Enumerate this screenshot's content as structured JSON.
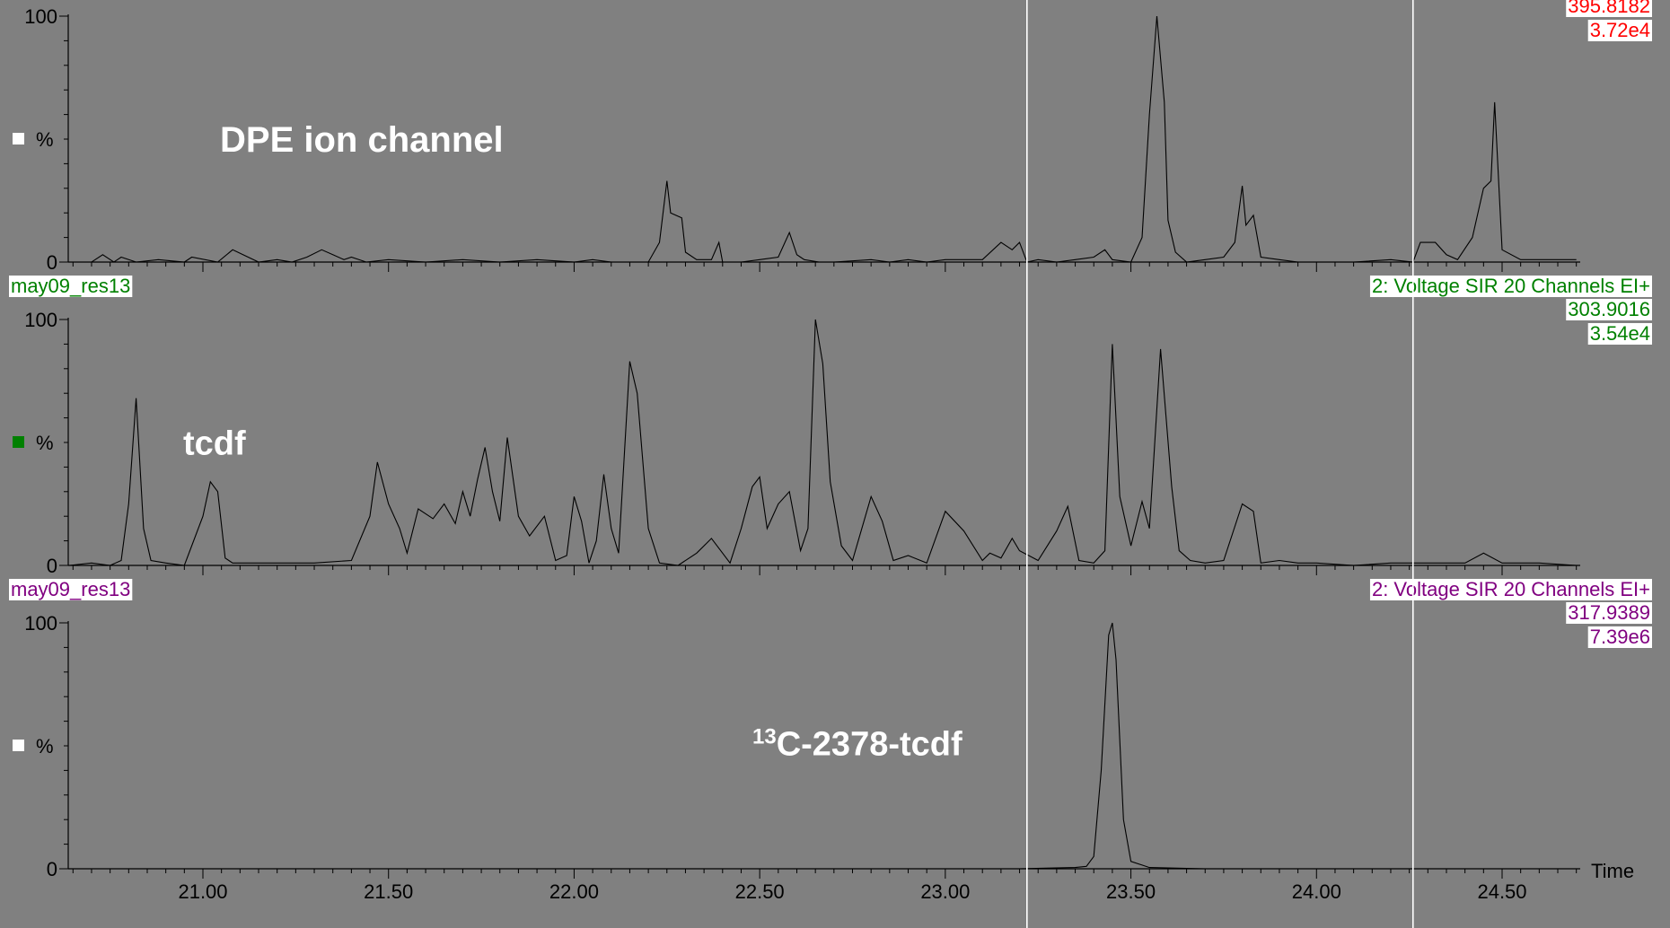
{
  "chart_data": {
    "type": "line",
    "x_label": "Time",
    "x_ticks": [
      "21.00",
      "21.50",
      "22.00",
      "22.50",
      "23.00",
      "23.50",
      "24.00",
      "24.50"
    ],
    "x_tick_values": [
      21.0,
      21.5,
      22.0,
      22.5,
      23.0,
      23.5,
      24.0,
      24.5
    ],
    "xlim": [
      20.64,
      24.71
    ],
    "ylim": [
      0,
      100
    ],
    "y_ticks": [
      "0",
      "100"
    ],
    "y_unit": "%",
    "grid": false,
    "reference_lines_x": [
      23.22,
      24.26
    ],
    "background": "#808080",
    "panels": [
      {
        "legend_marker_color": "#ffffff",
        "header_left": "",
        "header_right": "",
        "mass": "395.8182",
        "intensity": "3.72e4",
        "text_color": "#ff0000",
        "annotation": "DPE ion channel",
        "annotation_sup": "",
        "series": {
          "x": [
            20.64,
            20.7,
            20.73,
            20.76,
            20.78,
            20.82,
            20.88,
            20.95,
            20.97,
            21.04,
            21.08,
            21.15,
            21.2,
            21.24,
            21.28,
            21.32,
            21.35,
            21.38,
            21.4,
            21.44,
            21.5,
            21.6,
            21.7,
            21.8,
            21.9,
            22.0,
            22.05,
            22.1,
            22.15,
            22.2,
            22.23,
            22.25,
            22.26,
            22.29,
            22.3,
            22.33,
            22.37,
            22.39,
            22.4,
            22.45,
            22.5,
            22.55,
            22.58,
            22.6,
            22.62,
            22.66,
            22.7,
            22.8,
            22.85,
            22.9,
            22.95,
            23.0,
            23.1,
            23.15,
            23.18,
            23.2,
            23.22,
            23.25,
            23.3,
            23.35,
            23.4,
            23.43,
            23.45,
            23.5,
            23.53,
            23.55,
            23.57,
            23.59,
            23.6,
            23.62,
            23.65,
            23.7,
            23.75,
            23.78,
            23.8,
            23.81,
            23.83,
            23.85,
            23.9,
            23.95,
            24.0,
            24.1,
            24.2,
            24.26,
            24.28,
            24.3,
            24.32,
            24.35,
            24.38,
            24.42,
            24.45,
            24.47,
            24.48,
            24.5,
            24.55,
            24.6,
            24.7
          ],
          "y": [
            0,
            0,
            3,
            0,
            2,
            0,
            1,
            0,
            2,
            0,
            5,
            0,
            1,
            0,
            2,
            5,
            3,
            1,
            2,
            0,
            1,
            0,
            1,
            0,
            1,
            0,
            1,
            0,
            0,
            0,
            8,
            33,
            20,
            18,
            4,
            1,
            1,
            8,
            0,
            0,
            1,
            2,
            12,
            3,
            1,
            0,
            0,
            1,
            0,
            1,
            0,
            1,
            1,
            8,
            5,
            8,
            0,
            1,
            0,
            1,
            2,
            5,
            1,
            0,
            10,
            60,
            100,
            65,
            17,
            4,
            0,
            1,
            2,
            8,
            31,
            15,
            19,
            2,
            1,
            0,
            0,
            0,
            1,
            0,
            8,
            8,
            8,
            3,
            1,
            10,
            30,
            33,
            65,
            5,
            1,
            1,
            1
          ]
        }
      },
      {
        "legend_marker_color": "#008000",
        "header_left": "may09_res13",
        "header_right": "2: Voltage SIR 20 Channels EI+",
        "mass": "303.9016",
        "intensity": "3.54e4",
        "text_color": "#008000",
        "annotation": "tcdf",
        "annotation_sup": "",
        "series": {
          "x": [
            20.64,
            20.7,
            20.75,
            20.78,
            20.8,
            20.82,
            20.84,
            20.86,
            20.9,
            20.95,
            21.0,
            21.02,
            21.04,
            21.06,
            21.08,
            21.12,
            21.2,
            21.3,
            21.4,
            21.45,
            21.47,
            21.5,
            21.53,
            21.55,
            21.58,
            21.62,
            21.65,
            21.68,
            21.7,
            21.72,
            21.74,
            21.76,
            21.78,
            21.8,
            21.82,
            21.85,
            21.88,
            21.92,
            21.95,
            21.98,
            22.0,
            22.02,
            22.04,
            22.06,
            22.08,
            22.1,
            22.12,
            22.15,
            22.17,
            22.2,
            22.23,
            22.28,
            22.33,
            22.37,
            22.4,
            22.42,
            22.45,
            22.48,
            22.5,
            22.52,
            22.55,
            22.58,
            22.61,
            22.63,
            22.65,
            22.67,
            22.69,
            22.72,
            22.75,
            22.8,
            22.83,
            22.86,
            22.9,
            22.95,
            23.0,
            23.05,
            23.1,
            23.12,
            23.15,
            23.18,
            23.2,
            23.25,
            23.3,
            23.33,
            23.36,
            23.4,
            23.43,
            23.45,
            23.47,
            23.5,
            23.53,
            23.55,
            23.58,
            23.61,
            23.63,
            23.66,
            23.7,
            23.75,
            23.8,
            23.83,
            23.85,
            23.9,
            23.95,
            24.0,
            24.1,
            24.2,
            24.3,
            24.4,
            24.45,
            24.5,
            24.6,
            24.7
          ],
          "y": [
            0,
            1,
            0,
            2,
            25,
            68,
            15,
            2,
            1,
            0,
            20,
            34,
            30,
            3,
            1,
            1,
            1,
            1,
            2,
            20,
            42,
            25,
            15,
            5,
            23,
            19,
            25,
            17,
            30,
            20,
            35,
            48,
            30,
            18,
            52,
            20,
            12,
            20,
            2,
            4,
            28,
            18,
            1,
            10,
            37,
            15,
            5,
            83,
            70,
            15,
            1,
            0,
            5,
            11,
            5,
            1,
            15,
            32,
            36,
            15,
            25,
            30,
            6,
            15,
            100,
            82,
            34,
            8,
            2,
            28,
            18,
            2,
            4,
            1,
            22,
            14,
            2,
            5,
            3,
            11,
            6,
            2,
            14,
            24,
            2,
            1,
            6,
            90,
            28,
            8,
            26,
            15,
            88,
            32,
            6,
            2,
            1,
            2,
            25,
            22,
            1,
            2,
            1,
            1,
            0,
            1,
            1,
            1,
            5,
            1,
            1,
            0
          ]
        }
      },
      {
        "legend_marker_color": "#ffffff",
        "header_left": "may09_res13",
        "header_right": "2: Voltage SIR 20 Channels EI+",
        "mass": "317.9389",
        "intensity": "7.39e6",
        "text_color": "#800080",
        "annotation": "C-2378-tcdf",
        "annotation_sup": "13",
        "series": {
          "x": [
            20.64,
            23.2,
            23.35,
            23.38,
            23.4,
            23.42,
            23.44,
            23.45,
            23.46,
            23.48,
            23.5,
            23.55,
            23.7,
            24.7
          ],
          "y": [
            0,
            0,
            0.5,
            1,
            5,
            40,
            95,
            100,
            85,
            20,
            3,
            0.5,
            0,
            0
          ]
        }
      }
    ]
  }
}
